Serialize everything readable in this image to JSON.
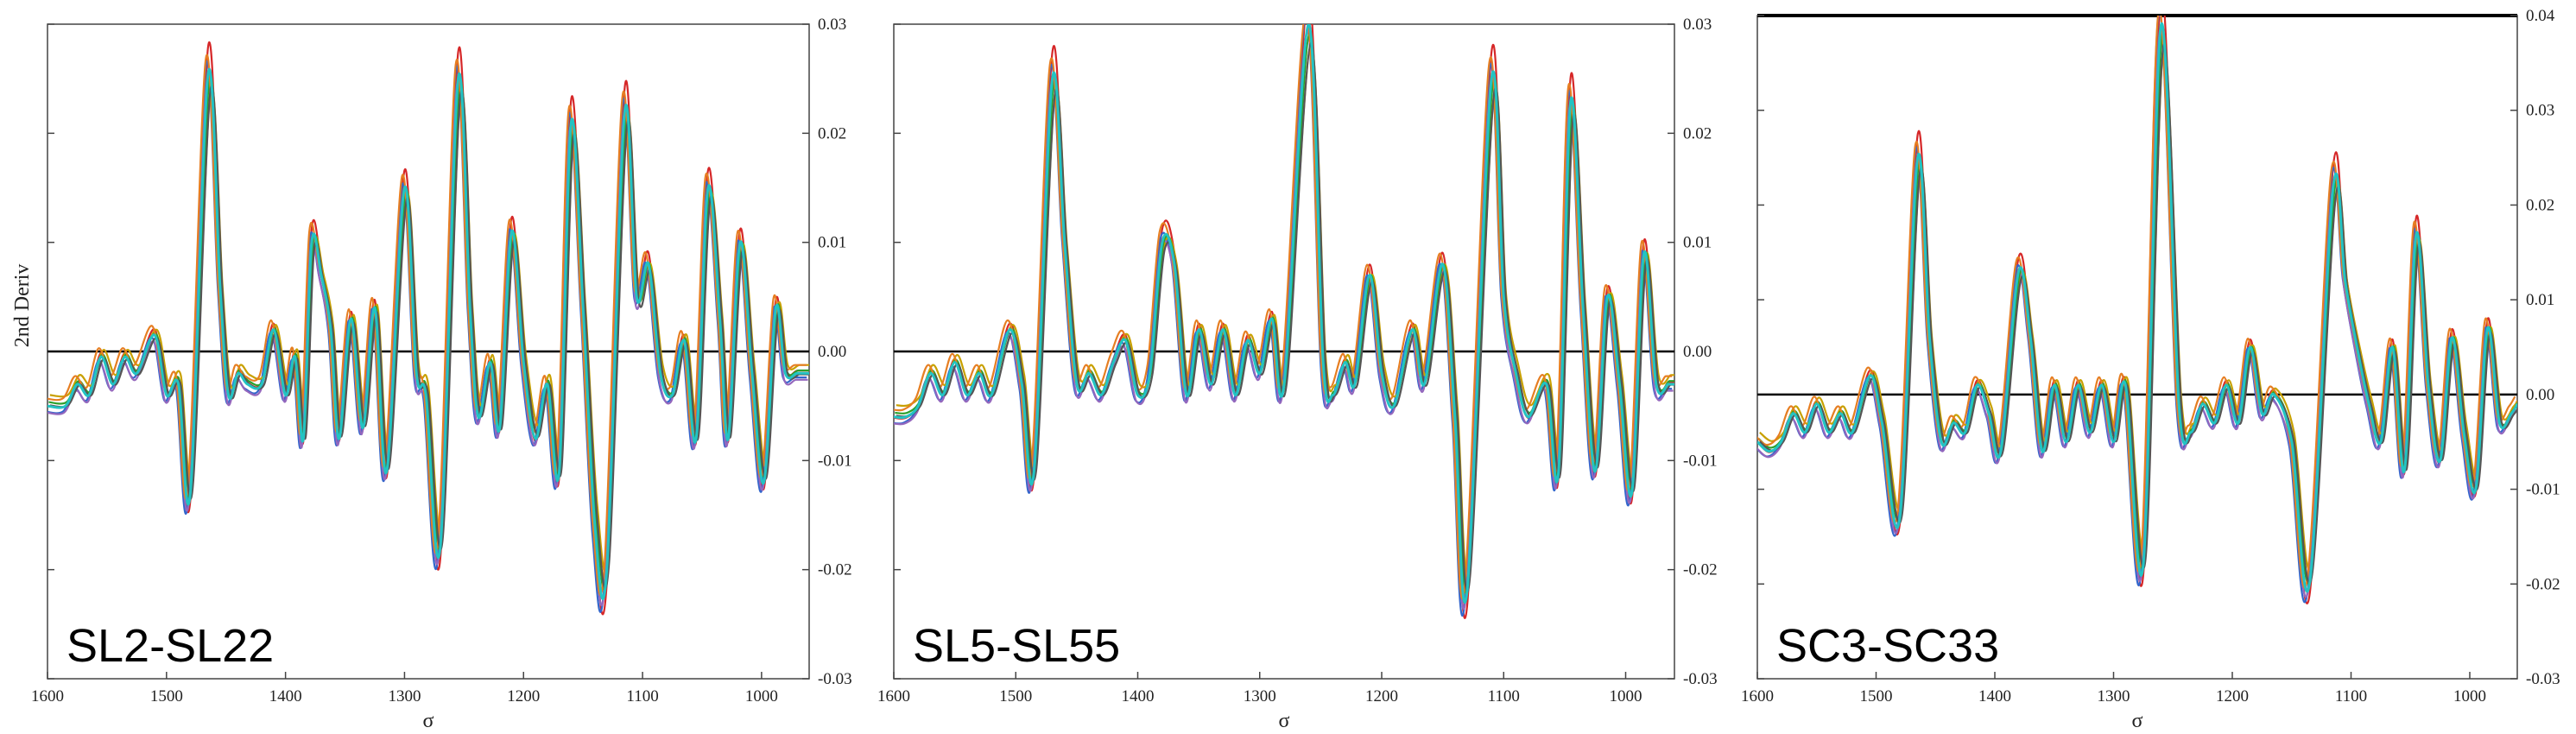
{
  "chart_data": [
    {
      "type": "line",
      "panel_label": "SL2-SL22",
      "xlabel": "σ",
      "ylabel": "2nd Deriv",
      "xlim": [
        1600,
        960
      ],
      "ylim": [
        -0.03,
        0.03
      ],
      "x_ticks": [
        "1600",
        "1500",
        "1400",
        "1300",
        "1200",
        "1100",
        "1000"
      ],
      "y_ticks": [
        "0.03",
        "0.02",
        "0.01",
        "0.00",
        "-0.01",
        "-0.02",
        "-0.03"
      ],
      "peaks": [
        [
          1600,
          -0.005
        ],
        [
          1585,
          -0.005
        ],
        [
          1575,
          -0.003
        ],
        [
          1565,
          -0.004
        ],
        [
          1555,
          -0.0005
        ],
        [
          1545,
          -0.003
        ],
        [
          1535,
          -0.0005
        ],
        [
          1525,
          -0.002
        ],
        [
          1510,
          0.0015
        ],
        [
          1500,
          -0.004
        ],
        [
          1490,
          -0.003
        ],
        [
          1480,
          -0.013
        ],
        [
          1465,
          0.0255
        ],
        [
          1455,
          0.006
        ],
        [
          1448,
          -0.004
        ],
        [
          1440,
          -0.002
        ],
        [
          1432,
          -0.003
        ],
        [
          1420,
          -0.003
        ],
        [
          1410,
          0.002
        ],
        [
          1400,
          -0.004
        ],
        [
          1392,
          -0.0005
        ],
        [
          1385,
          -0.008
        ],
        [
          1378,
          0.01
        ],
        [
          1370,
          0.007
        ],
        [
          1362,
          0.002
        ],
        [
          1355,
          -0.008
        ],
        [
          1345,
          0.003
        ],
        [
          1335,
          -0.007
        ],
        [
          1325,
          0.004
        ],
        [
          1315,
          -0.011
        ],
        [
          1300,
          0.015
        ],
        [
          1290,
          -0.002
        ],
        [
          1282,
          -0.004
        ],
        [
          1270,
          -0.018
        ],
        [
          1255,
          0.025
        ],
        [
          1245,
          0.004
        ],
        [
          1238,
          -0.006
        ],
        [
          1228,
          -0.001
        ],
        [
          1220,
          -0.007
        ],
        [
          1210,
          0.011
        ],
        [
          1200,
          -0.001
        ],
        [
          1190,
          -0.008
        ],
        [
          1180,
          -0.003
        ],
        [
          1170,
          -0.011
        ],
        [
          1160,
          0.021
        ],
        [
          1150,
          0.004
        ],
        [
          1140,
          -0.016
        ],
        [
          1130,
          -0.02
        ],
        [
          1115,
          0.022
        ],
        [
          1105,
          0.005
        ],
        [
          1095,
          0.008
        ],
        [
          1085,
          -0.002
        ],
        [
          1075,
          -0.004
        ],
        [
          1065,
          0.001
        ],
        [
          1055,
          -0.008
        ],
        [
          1045,
          0.015
        ],
        [
          1035,
          0.003
        ],
        [
          1028,
          -0.008
        ],
        [
          1018,
          0.01
        ],
        [
          1008,
          -0.002
        ],
        [
          998,
          -0.012
        ],
        [
          988,
          0.004
        ],
        [
          980,
          -0.002
        ],
        [
          970,
          -0.002
        ],
        [
          960,
          -0.002
        ]
      ],
      "series": [
        {
          "color": "#d62728"
        },
        {
          "color": "#3366cc"
        },
        {
          "color": "#c8a000"
        },
        {
          "color": "#9467bd"
        },
        {
          "color": "#2ca02c"
        },
        {
          "color": "#e67e22"
        },
        {
          "color": "#555555"
        },
        {
          "color": "#22c3c3"
        }
      ]
    },
    {
      "type": "line",
      "panel_label": "SL5-SL55",
      "xlabel": "σ",
      "ylabel": "",
      "xlim": [
        1600,
        960
      ],
      "ylim": [
        -0.03,
        0.03
      ],
      "x_ticks": [
        "1600",
        "1500",
        "1400",
        "1300",
        "1200",
        "1100",
        "1000"
      ],
      "y_ticks": [
        "0.03",
        "0.02",
        "0.01",
        "0.00",
        "-0.01",
        "-0.02",
        "-0.03"
      ],
      "peaks": [
        [
          1600,
          -0.006
        ],
        [
          1590,
          -0.006
        ],
        [
          1580,
          -0.005
        ],
        [
          1570,
          -0.002
        ],
        [
          1560,
          -0.004
        ],
        [
          1550,
          -0.001
        ],
        [
          1540,
          -0.004
        ],
        [
          1530,
          -0.002
        ],
        [
          1520,
          -0.004
        ],
        [
          1505,
          0.002
        ],
        [
          1495,
          -0.003
        ],
        [
          1485,
          -0.011
        ],
        [
          1470,
          0.025
        ],
        [
          1460,
          0.01
        ],
        [
          1450,
          -0.003
        ],
        [
          1440,
          -0.002
        ],
        [
          1430,
          -0.004
        ],
        [
          1420,
          -0.001
        ],
        [
          1410,
          0.001
        ],
        [
          1400,
          -0.004
        ],
        [
          1390,
          -0.002
        ],
        [
          1380,
          0.01
        ],
        [
          1370,
          0.008
        ],
        [
          1360,
          -0.004
        ],
        [
          1350,
          0.002
        ],
        [
          1340,
          -0.003
        ],
        [
          1330,
          0.002
        ],
        [
          1320,
          -0.004
        ],
        [
          1310,
          0.001
        ],
        [
          1300,
          -0.002
        ],
        [
          1290,
          0.003
        ],
        [
          1280,
          -0.003
        ],
        [
          1260,
          0.03
        ],
        [
          1248,
          -0.001
        ],
        [
          1240,
          -0.004
        ],
        [
          1230,
          -0.001
        ],
        [
          1222,
          -0.003
        ],
        [
          1210,
          0.007
        ],
        [
          1200,
          -0.002
        ],
        [
          1190,
          -0.005
        ],
        [
          1175,
          0.002
        ],
        [
          1165,
          -0.003
        ],
        [
          1150,
          0.008
        ],
        [
          1140,
          -0.006
        ],
        [
          1130,
          -0.022
        ],
        [
          1110,
          0.025
        ],
        [
          1100,
          0.005
        ],
        [
          1090,
          -0.002
        ],
        [
          1080,
          -0.006
        ],
        [
          1065,
          -0.003
        ],
        [
          1055,
          -0.011
        ],
        [
          1045,
          0.023
        ],
        [
          1035,
          0.004
        ],
        [
          1025,
          -0.011
        ],
        [
          1015,
          0.005
        ],
        [
          1005,
          -0.003
        ],
        [
          995,
          -0.013
        ],
        [
          985,
          0.009
        ],
        [
          975,
          -0.003
        ],
        [
          965,
          -0.003
        ],
        [
          960,
          -0.003
        ]
      ],
      "series": [
        {
          "color": "#d62728"
        },
        {
          "color": "#3366cc"
        },
        {
          "color": "#c8a000"
        },
        {
          "color": "#9467bd"
        },
        {
          "color": "#2ca02c"
        },
        {
          "color": "#e67e22"
        },
        {
          "color": "#555555"
        },
        {
          "color": "#22c3c3"
        }
      ]
    },
    {
      "type": "line",
      "panel_label": "SC3-SC33",
      "xlabel": "σ",
      "ylabel": "",
      "xlim": [
        1600,
        960
      ],
      "ylim": [
        -0.03,
        0.04
      ],
      "x_ticks": [
        "1600",
        "1500",
        "1400",
        "1300",
        "1200",
        "1100",
        "1000"
      ],
      "y_ticks": [
        "0.04",
        "0.03",
        "0.02",
        "0.01",
        "0.00",
        "-0.01",
        "-0.02",
        "-0.03"
      ],
      "peaks": [
        [
          1600,
          -0.005
        ],
        [
          1590,
          -0.006
        ],
        [
          1580,
          -0.005
        ],
        [
          1570,
          -0.002
        ],
        [
          1560,
          -0.004
        ],
        [
          1550,
          -0.001
        ],
        [
          1540,
          -0.004
        ],
        [
          1530,
          -0.002
        ],
        [
          1520,
          -0.004
        ],
        [
          1505,
          0.002
        ],
        [
          1495,
          -0.003
        ],
        [
          1480,
          -0.013
        ],
        [
          1465,
          0.025
        ],
        [
          1455,
          0.006
        ],
        [
          1445,
          -0.005
        ],
        [
          1435,
          -0.003
        ],
        [
          1425,
          -0.004
        ],
        [
          1415,
          0.001
        ],
        [
          1405,
          -0.002
        ],
        [
          1395,
          -0.006
        ],
        [
          1380,
          0.013
        ],
        [
          1370,
          0.006
        ],
        [
          1360,
          -0.006
        ],
        [
          1350,
          0.001
        ],
        [
          1340,
          -0.005
        ],
        [
          1330,
          0.001
        ],
        [
          1320,
          -0.004
        ],
        [
          1310,
          0.001
        ],
        [
          1300,
          -0.005
        ],
        [
          1290,
          0.001
        ],
        [
          1275,
          -0.018
        ],
        [
          1260,
          0.039
        ],
        [
          1245,
          -0.001
        ],
        [
          1235,
          -0.004
        ],
        [
          1225,
          -0.001
        ],
        [
          1215,
          -0.003
        ],
        [
          1205,
          0.001
        ],
        [
          1195,
          -0.003
        ],
        [
          1185,
          0.005
        ],
        [
          1175,
          -0.002
        ],
        [
          1165,
          0.0
        ],
        [
          1150,
          -0.005
        ],
        [
          1135,
          -0.02
        ],
        [
          1115,
          0.022
        ],
        [
          1105,
          0.012
        ],
        [
          1095,
          0.005
        ],
        [
          1085,
          -0.001
        ],
        [
          1075,
          -0.005
        ],
        [
          1065,
          0.005
        ],
        [
          1055,
          -0.008
        ],
        [
          1045,
          0.017
        ],
        [
          1035,
          0.001
        ],
        [
          1025,
          -0.007
        ],
        [
          1015,
          0.006
        ],
        [
          1005,
          -0.004
        ],
        [
          995,
          -0.01
        ],
        [
          985,
          0.007
        ],
        [
          975,
          -0.003
        ],
        [
          965,
          -0.002
        ],
        [
          960,
          -0.001
        ]
      ],
      "series": [
        {
          "color": "#d62728"
        },
        {
          "color": "#3366cc"
        },
        {
          "color": "#c8a000"
        },
        {
          "color": "#9467bd"
        },
        {
          "color": "#2ca02c"
        },
        {
          "color": "#e67e22"
        },
        {
          "color": "#555555"
        },
        {
          "color": "#22c3c3"
        }
      ]
    }
  ]
}
